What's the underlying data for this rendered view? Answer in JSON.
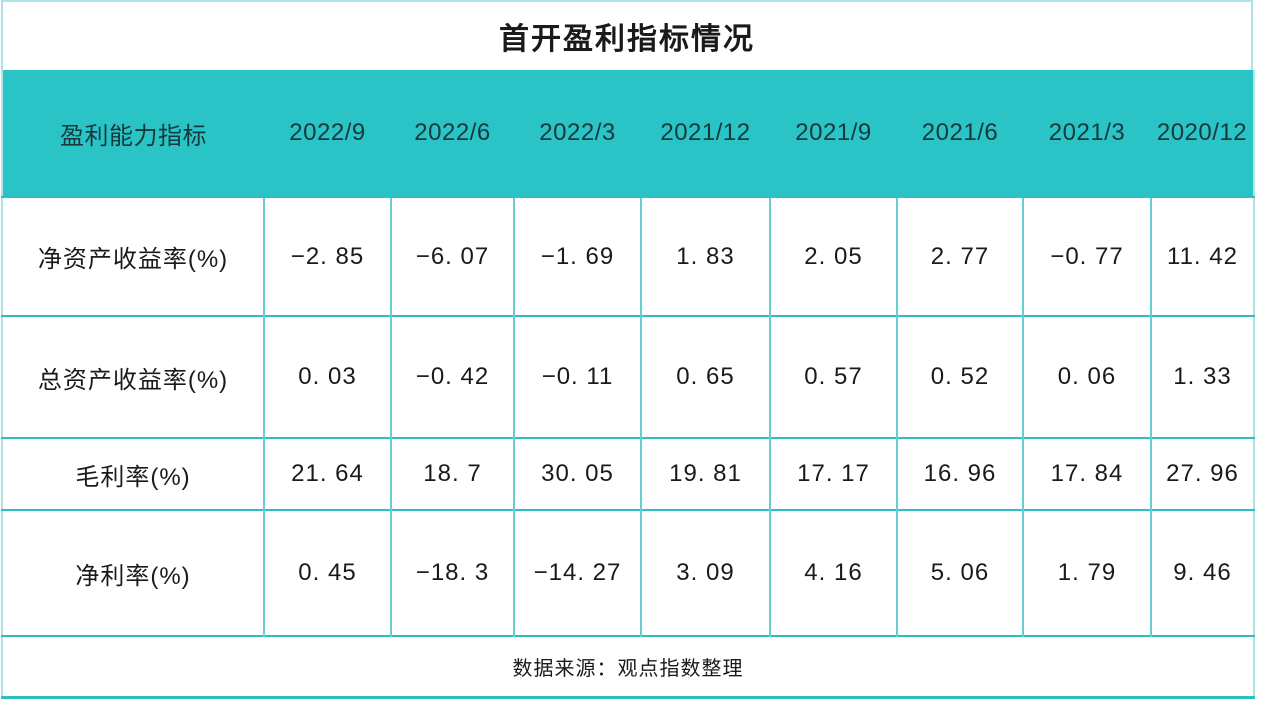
{
  "chart_data": {
    "type": "table",
    "title": "首开盈利指标情况",
    "columns": [
      "盈利能力指标",
      "2022/9",
      "2022/6",
      "2022/3",
      "2021/12",
      "2021/9",
      "2021/6",
      "2021/3",
      "2020/12"
    ],
    "rows": [
      {
        "label": "净资产收益率(%)",
        "values": [
          -2.85,
          -6.07,
          -1.69,
          1.83,
          2.05,
          2.77,
          -0.77,
          11.42
        ]
      },
      {
        "label": "总资产收益率(%)",
        "values": [
          0.03,
          -0.42,
          -0.11,
          0.65,
          0.57,
          0.52,
          0.06,
          1.33
        ]
      },
      {
        "label": "毛利率(%)",
        "values": [
          21.64,
          18.7,
          30.05,
          19.81,
          17.17,
          16.96,
          17.84,
          27.96
        ]
      },
      {
        "label": "净利率(%)",
        "values": [
          0.45,
          -18.3,
          -14.27,
          3.09,
          4.16,
          5.06,
          1.79,
          9.46
        ]
      }
    ],
    "source": "数据来源：观点指数整理"
  },
  "colors": {
    "header_bg": "#2AC4C6",
    "grid_horizontal": "#2FBFC2",
    "grid_vertical": "#66CFD2",
    "outer_border": "#ACE4E6",
    "text": "#1A1A1A"
  }
}
